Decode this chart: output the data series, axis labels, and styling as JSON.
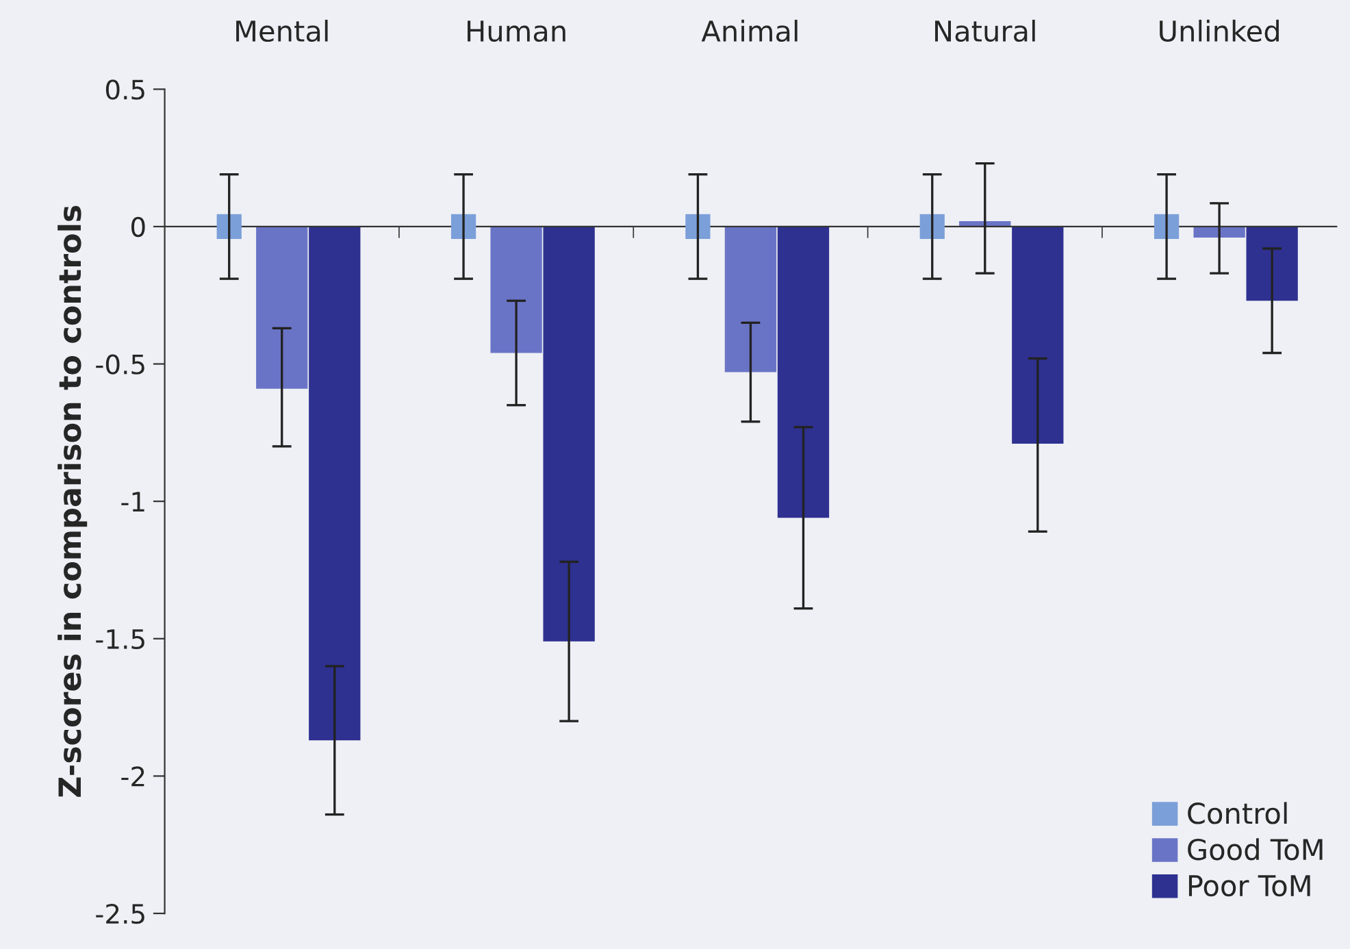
{
  "chart_data": {
    "type": "bar",
    "ylabel": "Z-scores in comparison to controls",
    "categories": [
      "Mental",
      "Human",
      "Animal",
      "Natural",
      "Unlinked"
    ],
    "series": [
      {
        "name": "Control",
        "type": "scatter",
        "marker": "square",
        "color": "#7b9fd9",
        "values": [
          0,
          0,
          0,
          0,
          0
        ],
        "errors": [
          [
            -0.19,
            0.19
          ],
          [
            -0.19,
            0.19
          ],
          [
            -0.19,
            0.19
          ],
          [
            -0.19,
            0.19
          ],
          [
            -0.19,
            0.19
          ]
        ]
      },
      {
        "name": "Good ToM",
        "color": "#6a74c6",
        "values": [
          -0.59,
          -0.46,
          -0.53,
          0.02,
          -0.04
        ],
        "errors": [
          [
            -0.8,
            -0.37
          ],
          [
            -0.65,
            -0.27
          ],
          [
            -0.71,
            -0.35
          ],
          [
            -0.17,
            0.23
          ],
          [
            -0.17,
            0.085
          ]
        ]
      },
      {
        "name": "Poor ToM",
        "color": "#2e3190",
        "values": [
          -1.87,
          -1.51,
          -1.06,
          -0.79,
          -0.27
        ],
        "errors": [
          [
            -2.14,
            -1.6
          ],
          [
            -1.8,
            -1.22
          ],
          [
            -1.39,
            -0.73
          ],
          [
            -1.11,
            -0.48
          ],
          [
            -0.46,
            -0.08
          ]
        ]
      }
    ],
    "ylim": [
      -2.5,
      0.5
    ],
    "yticks": [
      {
        "value": -2.5,
        "label": "-2.5"
      },
      {
        "value": -2,
        "label": "-2"
      },
      {
        "value": -1.5,
        "label": "-1.5"
      },
      {
        "value": -1,
        "label": "-1"
      },
      {
        "value": -0.5,
        "label": "-0.5"
      },
      0,
      0.5
    ],
    "legend": "bottom right"
  }
}
